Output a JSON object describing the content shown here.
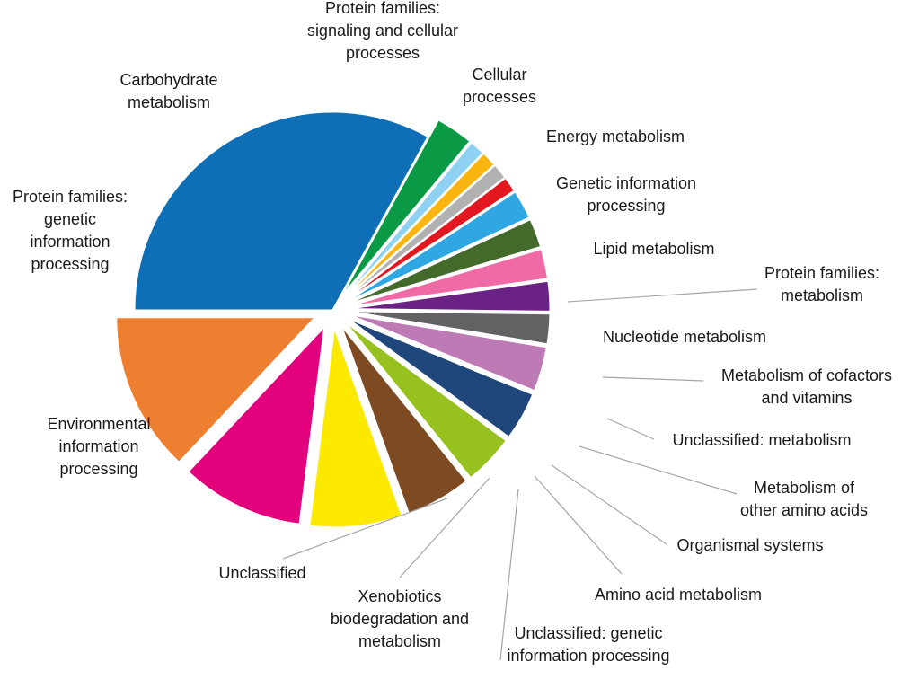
{
  "chart_data": {
    "type": "pie",
    "legend": "none",
    "slices": [
      {
        "label": "Environmental information processing",
        "label_lines": [
          "Environmental",
          "information",
          "processing"
        ],
        "value": 33.0,
        "color": "#0f6fb6"
      },
      {
        "label": "Unclassified",
        "label_lines": [
          "Unclassified"
        ],
        "value": 3.0,
        "color": "#0a9a46"
      },
      {
        "label": "Xenobiotics biodegradation and metabolism",
        "label_lines": [
          "Xenobiotics",
          "biodegradation and",
          "metabolism"
        ],
        "value": 1.2,
        "color": "#8fd1f2"
      },
      {
        "label": "Unclassified: genetic information processing",
        "label_lines": [
          "Unclassified: genetic",
          "information processing"
        ],
        "value": 1.2,
        "color": "#fbb510"
      },
      {
        "label": "Amino acid metabolism",
        "label_lines": [
          "Amino acid metabolism"
        ],
        "value": 1.2,
        "color": "#b1b1b1"
      },
      {
        "label": "Organismal systems",
        "label_lines": [
          "Organismal systems"
        ],
        "value": 1.2,
        "color": "#e2171f"
      },
      {
        "label": "Metabolism of other amino acids",
        "label_lines": [
          "Metabolism of",
          "other amino acids"
        ],
        "value": 2.3,
        "color": "#2fa7e2"
      },
      {
        "label": "Unclassified: metabolism",
        "label_lines": [
          "Unclassified: metabolism"
        ],
        "value": 2.3,
        "color": "#446a2b"
      },
      {
        "label": "Metabolism of cofactors and vitamins",
        "label_lines": [
          "Metabolism of cofactors",
          "and vitamins"
        ],
        "value": 2.4,
        "color": "#f06aa6"
      },
      {
        "label": "Nucleotide metabolism",
        "label_lines": [
          "Nucleotide metabolism"
        ],
        "value": 2.4,
        "color": "#6a2384"
      },
      {
        "label": "Protein families: metabolism",
        "label_lines": [
          "Protein families:",
          "metabolism"
        ],
        "value": 2.4,
        "color": "#626262"
      },
      {
        "label": "Lipid metabolism",
        "label_lines": [
          "Lipid metabolism"
        ],
        "value": 3.6,
        "color": "#bd7ab5"
      },
      {
        "label": "Genetic information processing",
        "label_lines": [
          "Genetic information",
          "processing"
        ],
        "value": 3.9,
        "color": "#1f477b"
      },
      {
        "label": "Energy metabolism",
        "label_lines": [
          "Energy metabolism"
        ],
        "value": 4.1,
        "color": "#97c11f"
      },
      {
        "label": "Cellular processes",
        "label_lines": [
          "Cellular",
          "processes"
        ],
        "value": 5.3,
        "color": "#7d4a21"
      },
      {
        "label": "Protein families: signaling and cellular processes",
        "label_lines": [
          "Protein families:",
          "signaling and cellular",
          "processes"
        ],
        "value": 7.5,
        "color": "#fbea00"
      },
      {
        "label": "Carbohydrate metabolism",
        "label_lines": [
          "Carbohydrate",
          "metabolism"
        ],
        "value": 10.0,
        "color": "#e2007c"
      },
      {
        "label": "Protein families: genetic information processing",
        "label_lines": [
          "Protein families:",
          "genetic",
          "information",
          "processing"
        ],
        "value": 13.0,
        "color": "#ee7f31"
      }
    ]
  }
}
